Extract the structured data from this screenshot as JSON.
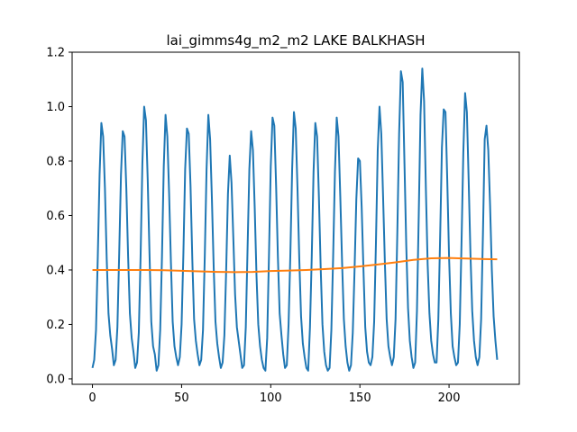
{
  "chart_data": {
    "type": "line",
    "title": "lai_gimms4g_m2_m2 LAKE BALKHASH",
    "xlabel": "",
    "ylabel": "",
    "xlim": [
      -11.4,
      239.4
    ],
    "ylim": [
      -0.02,
      1.2
    ],
    "xticks": [
      0,
      50,
      100,
      150,
      200
    ],
    "yticks": [
      0.0,
      0.2,
      0.4,
      0.6,
      0.8,
      1.0,
      1.2
    ],
    "xtick_labels": [
      "0",
      "50",
      "100",
      "150",
      "200"
    ],
    "ytick_labels": [
      "0.0",
      "0.2",
      "0.4",
      "0.6",
      "0.8",
      "1.0",
      "1.2"
    ],
    "grid": false,
    "legend": "none",
    "series": [
      {
        "color": "#1f77b4",
        "x": [
          0,
          1,
          2,
          3,
          4,
          5,
          6,
          7,
          8,
          9,
          10,
          11,
          12,
          13,
          14,
          15,
          16,
          17,
          18,
          19,
          20,
          21,
          22,
          23,
          24,
          25,
          26,
          27,
          28,
          29,
          30,
          31,
          32,
          33,
          34,
          35,
          36,
          37,
          38,
          39,
          40,
          41,
          42,
          43,
          44,
          45,
          46,
          47,
          48,
          49,
          50,
          51,
          52,
          53,
          54,
          55,
          56,
          57,
          58,
          59,
          60,
          61,
          62,
          63,
          64,
          65,
          66,
          67,
          68,
          69,
          70,
          71,
          72,
          73,
          74,
          75,
          76,
          77,
          78,
          79,
          80,
          81,
          82,
          83,
          84,
          85,
          86,
          87,
          88,
          89,
          90,
          91,
          92,
          93,
          94,
          95,
          96,
          97,
          98,
          99,
          100,
          101,
          102,
          103,
          104,
          105,
          106,
          107,
          108,
          109,
          110,
          111,
          112,
          113,
          114,
          115,
          116,
          117,
          118,
          119,
          120,
          121,
          122,
          123,
          124,
          125,
          126,
          127,
          128,
          129,
          130,
          131,
          132,
          133,
          134,
          135,
          136,
          137,
          138,
          139,
          140,
          141,
          142,
          143,
          144,
          145,
          146,
          147,
          148,
          149,
          150,
          151,
          152,
          153,
          154,
          155,
          156,
          157,
          158,
          159,
          160,
          161,
          162,
          163,
          164,
          165,
          166,
          167,
          168,
          169,
          170,
          171,
          172,
          173,
          174,
          175,
          176,
          177,
          178,
          179,
          180,
          181,
          182,
          183,
          184,
          185,
          186,
          187,
          188,
          189,
          190,
          191,
          192,
          193,
          194,
          195,
          196,
          197,
          198,
          199,
          200,
          201,
          202,
          203,
          204,
          205,
          206,
          207,
          208,
          209,
          210,
          211,
          212,
          213,
          214,
          215,
          216,
          217,
          218,
          219,
          220,
          221,
          222,
          223,
          224,
          225,
          226,
          227
        ],
        "y": [
          0.04,
          0.07,
          0.18,
          0.45,
          0.75,
          0.94,
          0.89,
          0.7,
          0.44,
          0.24,
          0.16,
          0.11,
          0.05,
          0.07,
          0.19,
          0.46,
          0.75,
          0.91,
          0.89,
          0.7,
          0.45,
          0.24,
          0.15,
          0.1,
          0.04,
          0.06,
          0.17,
          0.45,
          0.79,
          1.0,
          0.95,
          0.73,
          0.46,
          0.21,
          0.12,
          0.09,
          0.03,
          0.05,
          0.18,
          0.45,
          0.78,
          0.97,
          0.89,
          0.68,
          0.43,
          0.21,
          0.12,
          0.08,
          0.05,
          0.08,
          0.2,
          0.46,
          0.77,
          0.92,
          0.9,
          0.71,
          0.44,
          0.22,
          0.14,
          0.09,
          0.05,
          0.07,
          0.18,
          0.45,
          0.77,
          0.97,
          0.88,
          0.66,
          0.41,
          0.21,
          0.13,
          0.08,
          0.04,
          0.06,
          0.16,
          0.4,
          0.68,
          0.82,
          0.72,
          0.52,
          0.31,
          0.19,
          0.14,
          0.09,
          0.04,
          0.05,
          0.19,
          0.48,
          0.77,
          0.91,
          0.84,
          0.63,
          0.38,
          0.2,
          0.12,
          0.07,
          0.04,
          0.03,
          0.15,
          0.45,
          0.78,
          0.96,
          0.93,
          0.71,
          0.45,
          0.24,
          0.16,
          0.09,
          0.04,
          0.05,
          0.2,
          0.46,
          0.77,
          0.98,
          0.92,
          0.7,
          0.44,
          0.23,
          0.13,
          0.08,
          0.04,
          0.03,
          0.19,
          0.45,
          0.76,
          0.94,
          0.89,
          0.67,
          0.41,
          0.2,
          0.1,
          0.05,
          0.03,
          0.04,
          0.18,
          0.45,
          0.76,
          0.96,
          0.89,
          0.67,
          0.43,
          0.22,
          0.12,
          0.06,
          0.03,
          0.05,
          0.17,
          0.4,
          0.66,
          0.81,
          0.8,
          0.63,
          0.4,
          0.19,
          0.1,
          0.06,
          0.05,
          0.08,
          0.21,
          0.5,
          0.84,
          1.0,
          0.9,
          0.67,
          0.43,
          0.22,
          0.12,
          0.08,
          0.05,
          0.08,
          0.22,
          0.54,
          0.9,
          1.13,
          1.09,
          0.79,
          0.49,
          0.26,
          0.14,
          0.08,
          0.04,
          0.06,
          0.25,
          0.6,
          0.97,
          1.14,
          1.02,
          0.7,
          0.42,
          0.24,
          0.14,
          0.09,
          0.06,
          0.06,
          0.22,
          0.52,
          0.85,
          0.99,
          0.98,
          0.73,
          0.45,
          0.24,
          0.12,
          0.08,
          0.05,
          0.06,
          0.2,
          0.5,
          0.83,
          1.05,
          0.98,
          0.73,
          0.46,
          0.25,
          0.14,
          0.08,
          0.05,
          0.08,
          0.22,
          0.53,
          0.88,
          0.93,
          0.84,
          0.64,
          0.4,
          0.23,
          0.14,
          0.07
        ]
      },
      {
        "color": "#ff7f0e",
        "x": [
          0,
          10,
          20,
          30,
          40,
          50,
          60,
          70,
          80,
          90,
          100,
          110,
          120,
          130,
          140,
          150,
          160,
          170,
          180,
          190,
          200,
          210,
          220,
          227
        ],
        "y": [
          0.4,
          0.4,
          0.4,
          0.4,
          0.399,
          0.397,
          0.395,
          0.393,
          0.392,
          0.393,
          0.396,
          0.398,
          0.4,
          0.403,
          0.407,
          0.413,
          0.42,
          0.428,
          0.437,
          0.443,
          0.444,
          0.442,
          0.44,
          0.439
        ]
      }
    ]
  }
}
